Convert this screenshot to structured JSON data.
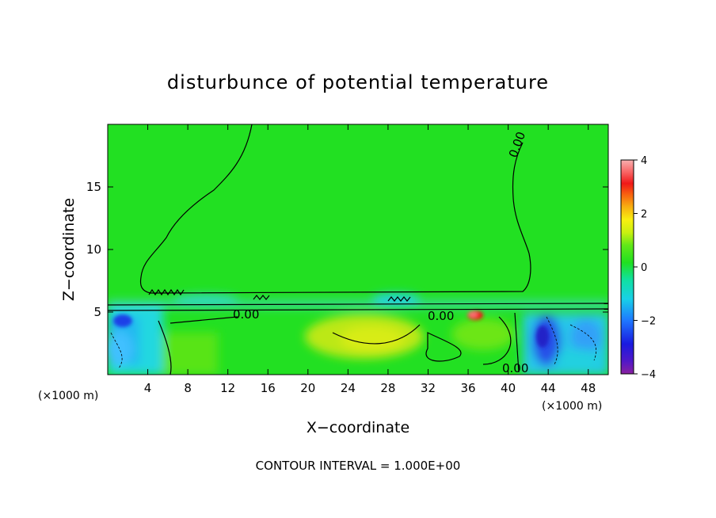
{
  "chart_data": {
    "type": "heatmap",
    "title": "disturbunce of potential temperature",
    "xlabel": "X−coordinate",
    "ylabel": "Z−coordinate",
    "x_unit_left": "(×1000 m)",
    "x_unit_right": "(×1000 m)",
    "xlim": [
      0,
      50
    ],
    "ylim": [
      0,
      20
    ],
    "x_ticks": [
      4,
      8,
      12,
      16,
      20,
      24,
      28,
      32,
      36,
      40,
      44,
      48
    ],
    "y_ticks": [
      5,
      10,
      15
    ],
    "colorbar": {
      "min": -4,
      "max": 4,
      "ticks": [
        4,
        2,
        0,
        -2,
        -4
      ]
    },
    "contour_labels": [
      "0.00",
      "0.00",
      "0.00",
      "0.00"
    ],
    "contour_interval": 1.0,
    "footer": "CONTOUR INTERVAL = 1.000E+00",
    "colors": {
      "background_field": "#22e022",
      "neutral": "#1ee01e"
    },
    "features": [
      {
        "name": "inversion layer",
        "z": 5.3,
        "x_range": [
          0,
          50
        ]
      },
      {
        "name": "warm anomaly",
        "x": 36.5,
        "z": 4.8,
        "value": 3.5
      },
      {
        "name": "cold region left",
        "x_range": [
          0,
          6
        ],
        "z_range": [
          0,
          5.5
        ],
        "value": -1.5
      },
      {
        "name": "cold region right",
        "x_range": [
          42,
          50
        ],
        "z_range": [
          0,
          5
        ],
        "value": -2.5
      },
      {
        "name": "warm pool lower",
        "x_range": [
          20,
          34
        ],
        "z_range": [
          1,
          5
        ],
        "value": 1.0
      }
    ]
  }
}
